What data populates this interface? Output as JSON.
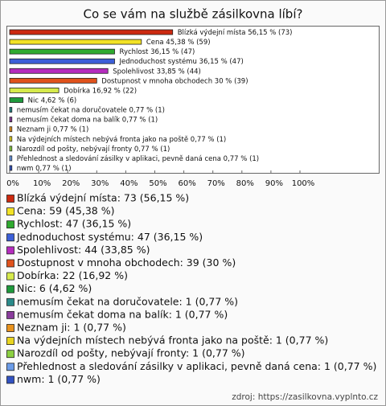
{
  "chart_data": {
    "type": "bar",
    "orientation": "horizontal",
    "title": "Co se vám na službě zásilkovna líbí?",
    "categories": [
      "Blízká výdejní místa",
      "Cena",
      "Rychlost",
      "Jednoduchost systému",
      "Spolehlivost",
      "Dostupnost v mnoha obchodech",
      "Dobírka",
      "Nic",
      "nemusím čekat na doručovatele",
      "nemusím čekat doma na balík",
      "Neznam ji",
      "Na výdejních místech nebývá fronta jako na poště",
      "Narozdíl od pošty, nebývají fronty",
      "Přehlednost a sledování zásilky v aplikaci, pevně daná cena",
      "nwm"
    ],
    "values": [
      56.15,
      45.38,
      36.15,
      36.15,
      33.85,
      30,
      16.92,
      4.62,
      0.77,
      0.77,
      0.77,
      0.77,
      0.77,
      0.77,
      0.77
    ],
    "value_labels": [
      "56,15 % (73)",
      "45,38 % (59)",
      "36,15 % (47)",
      "36,15 % (47)",
      "33,85 % (44)",
      "30 % (39)",
      "16,92 % (22)",
      "4,62 % (6)",
      "0,77 % (1)",
      "0,77 % (1)",
      "0,77 % (1)",
      "0,77 % (1)",
      "0,77 % (1)",
      "0,77 % (1)",
      "0,77 % (1)"
    ],
    "legend_labels": [
      "Blízká výdejní místa: 73 (56,15 %)",
      "Cena: 59 (45,38 %)",
      "Rychlost: 47 (36,15 %)",
      "Jednoduchost systému: 47 (36,15 %)",
      "Spolehlivost: 44 (33,85 %)",
      "Dostupnost v mnoha obchodech: 39 (30 %)",
      "Dobírka: 22 (16,92 %)",
      "Nic: 6 (4,62 %)",
      "nemusím čekat na doručovatele: 1 (0,77 %)",
      "nemusím čekat doma na balík: 1 (0,77 %)",
      "Neznam ji: 1 (0,77 %)",
      "Na výdejních místech nebývá fronta jako na poště: 1 (0,77 %)",
      "Narozdíl od pošty, nebývají fronty: 1 (0,77 %)",
      "Přehlednost a sledování zásilky v aplikaci, pevně daná cena: 1 (0,77 %)",
      "nwm: 1 (0,77 %)"
    ],
    "colors": [
      "#cc2a10",
      "#f2e226",
      "#2faa2f",
      "#3c5fd8",
      "#b52cbe",
      "#e0521c",
      "#d6ea4c",
      "#1e9a3c",
      "#2a8a8a",
      "#8a3c9c",
      "#e8921e",
      "#e8d420",
      "#8cd042",
      "#6c9ce8",
      "#3252c2"
    ],
    "xlim": [
      0,
      100
    ],
    "xticks": [
      {
        "value": 0,
        "label": "0%"
      },
      {
        "value": 10,
        "label": "10%"
      },
      {
        "value": 20,
        "label": "20%"
      },
      {
        "value": 30,
        "label": "30%"
      },
      {
        "value": 40,
        "label": "40%"
      },
      {
        "value": 50,
        "label": "50%"
      },
      {
        "value": 60,
        "label": "60%"
      },
      {
        "value": 70,
        "label": "70%"
      },
      {
        "value": 80,
        "label": "80%"
      },
      {
        "value": 90,
        "label": "90%"
      },
      {
        "value": 100,
        "label": "100%"
      }
    ],
    "grid": false,
    "source": "zdroj: https://zasilkovna.vyplnto.cz"
  }
}
